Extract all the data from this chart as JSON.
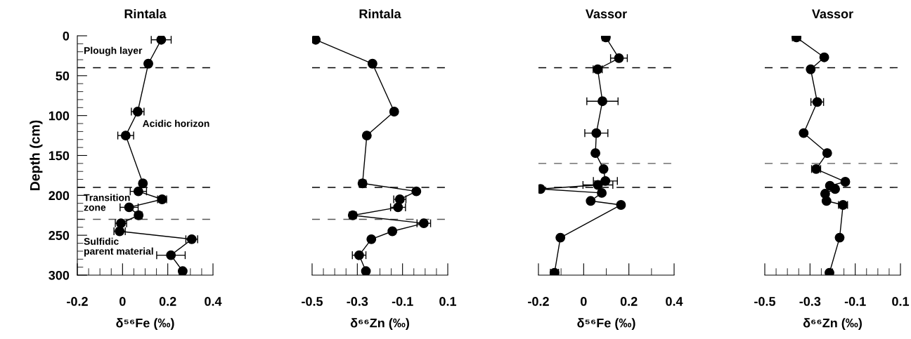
{
  "chart_data": [
    {
      "type": "line",
      "title": "Rintala",
      "xlabel": "δ⁵⁶Fe (‰)",
      "ylabel": "Depth (cm)",
      "marker": "circle",
      "line_style": "solid",
      "grid": false,
      "legend": false,
      "xlim": [
        -0.2,
        0.4
      ],
      "xticks": [
        -0.2,
        {
          "value": -0.15,
          "label": null
        },
        {
          "value": -0.1,
          "label": null
        },
        {
          "value": -0.05,
          "label": null
        },
        0,
        {
          "value": 0.05,
          "label": null
        },
        {
          "value": 0.1,
          "label": null
        },
        {
          "value": 0.15,
          "label": null
        },
        0.2,
        {
          "value": 0.25,
          "label": null
        },
        {
          "value": 0.3,
          "label": null
        },
        {
          "value": 0.35,
          "label": null
        },
        0.4
      ],
      "ylim": [
        300,
        0
      ],
      "yticks": [
        0,
        {
          "value": 10,
          "label": null
        },
        {
          "value": 20,
          "label": null
        },
        {
          "value": 30,
          "label": null
        },
        {
          "value": 40,
          "label": null
        },
        50,
        {
          "value": 60,
          "label": null
        },
        {
          "value": 70,
          "label": null
        },
        {
          "value": 80,
          "label": null
        },
        {
          "value": 90,
          "label": null
        },
        100,
        {
          "value": 110,
          "label": null
        },
        {
          "value": 120,
          "label": null
        },
        {
          "value": 130,
          "label": null
        },
        {
          "value": 140,
          "label": null
        },
        150,
        {
          "value": 160,
          "label": null
        },
        {
          "value": 170,
          "label": null
        },
        {
          "value": 180,
          "label": null
        },
        {
          "value": 190,
          "label": null
        },
        200,
        {
          "value": 210,
          "label": null
        },
        {
          "value": 220,
          "label": null
        },
        {
          "value": 230,
          "label": null
        },
        {
          "value": 240,
          "label": null
        },
        250,
        {
          "value": 260,
          "label": null
        },
        {
          "value": 270,
          "label": null
        },
        {
          "value": 280,
          "label": null
        },
        {
          "value": 290,
          "label": null
        },
        300
      ],
      "series": [
        {
          "color": "#000000",
          "x": [
            0.171,
            0.114,
            0.067,
            0.014,
            0.09,
            0.07,
            0.175,
            0.029,
            0.071,
            -0.007,
            -0.013,
            0.306,
            0.214,
            0.266
          ],
          "values": [
            5,
            35,
            95,
            125,
            185,
            195,
            205,
            215,
            225,
            235,
            245,
            255,
            275,
            295
          ],
          "xerrors": [
            0.044,
            null,
            0.028,
            0.035,
            null,
            0.036,
            0.02,
            0.04,
            0.015,
            0.025,
            0.025,
            0.026,
            0.063,
            null
          ]
        }
      ],
      "ref_lines": [
        {
          "axis": "y",
          "value": 40,
          "line_style": "dashed",
          "color": "#000000"
        },
        {
          "axis": "y",
          "value": 190,
          "line_style": "dashed",
          "color": "#000000"
        },
        {
          "axis": "y",
          "value": 230,
          "line_style": "dashed",
          "color": "#555555"
        }
      ],
      "annotations": [
        "Plough layer",
        "Acidic horizon",
        "Transition\nzone",
        "Sulfidic\nparent material"
      ]
    },
    {
      "type": "line",
      "title": "Rintala",
      "xlabel": "δ⁶⁶Zn (‰)",
      "marker": "circle",
      "line_style": "solid",
      "grid": false,
      "legend": false,
      "tick_labels": "x",
      "xlim": [
        -0.5,
        0.1
      ],
      "xticks": [
        -0.5,
        {
          "value": -0.45,
          "label": null
        },
        {
          "value": -0.4,
          "label": null
        },
        {
          "value": -0.35,
          "label": null
        },
        -0.3,
        {
          "value": -0.25,
          "label": null
        },
        {
          "value": -0.2,
          "label": null
        },
        {
          "value": -0.15,
          "label": null
        },
        -0.1,
        {
          "value": -0.05,
          "label": null
        },
        {
          "value": 0,
          "label": null
        },
        {
          "value": 0.05,
          "label": null
        },
        0.1
      ],
      "ylim": [
        300,
        0
      ],
      "series": [
        {
          "color": "#000000",
          "x": [
            -0.484,
            -0.233,
            -0.137,
            -0.258,
            -0.277,
            -0.039,
            -0.112,
            -0.12,
            -0.32,
            -0.006,
            -0.145,
            -0.238,
            -0.292,
            -0.262
          ],
          "values": [
            5,
            35,
            95,
            125,
            185,
            195,
            205,
            215,
            225,
            235,
            245,
            255,
            275,
            295
          ],
          "xerrors": [
            null,
            0.01,
            null,
            0.01,
            0.015,
            null,
            0.027,
            0.033,
            0.015,
            0.03,
            null,
            null,
            0.03,
            null
          ]
        }
      ],
      "ref_lines": [
        {
          "axis": "y",
          "value": 40,
          "line_style": "dashed",
          "color": "#000000"
        },
        {
          "axis": "y",
          "value": 190,
          "line_style": "dashed",
          "color": "#000000"
        },
        {
          "axis": "y",
          "value": 230,
          "line_style": "dashed",
          "color": "#555555"
        }
      ]
    },
    {
      "type": "line",
      "title": "Vassor",
      "xlabel": "δ⁵⁶Fe (‰)",
      "marker": "circle",
      "line_style": "solid",
      "grid": false,
      "legend": false,
      "tick_labels": "x",
      "xlim": [
        -0.2,
        0.4
      ],
      "xticks": [
        -0.2,
        {
          "value": -0.1,
          "label": null
        },
        0,
        {
          "value": 0.1,
          "label": null
        },
        0.2,
        {
          "value": 0.3,
          "label": null
        },
        0.4
      ],
      "ylim": [
        300,
        0
      ],
      "series": [
        {
          "color": "#000000",
          "x": [
            0.098,
            0.156,
            0.062,
            0.083,
            0.056,
            0.052,
            0.088,
            0.096,
            0.063,
            -0.191,
            0.08,
            0.031,
            0.165,
            -0.103,
            -0.129
          ],
          "values": [
            2,
            28,
            42,
            82,
            122,
            147,
            167,
            182,
            187,
            192,
            197,
            207,
            212,
            253,
            297
          ],
          "xerrors": [
            0.015,
            0.037,
            0.02,
            0.069,
            0.051,
            null,
            null,
            0.053,
            0.066,
            0.01,
            null,
            null,
            null,
            null,
            0.018
          ]
        }
      ],
      "ref_lines": [
        {
          "axis": "y",
          "value": 40,
          "line_style": "dashed",
          "color": "#000000"
        },
        {
          "axis": "y",
          "value": 160,
          "line_style": "dashed",
          "color": "#555555"
        },
        {
          "axis": "y",
          "value": 190,
          "line_style": "dashed",
          "color": "#000000"
        }
      ]
    },
    {
      "type": "line",
      "title": "Vassor",
      "xlabel": "δ⁶⁶Zn (‰)",
      "marker": "circle",
      "line_style": "solid",
      "grid": false,
      "legend": false,
      "tick_labels": "x",
      "xlim": [
        -0.5,
        0.1
      ],
      "xticks": [
        -0.5,
        {
          "value": -0.45,
          "label": null
        },
        {
          "value": -0.4,
          "label": null
        },
        {
          "value": -0.35,
          "label": null
        },
        -0.3,
        {
          "value": -0.25,
          "label": null
        },
        {
          "value": -0.2,
          "label": null
        },
        {
          "value": -0.15,
          "label": null
        },
        -0.1,
        {
          "value": -0.05,
          "label": null
        },
        {
          "value": 0,
          "label": null
        },
        {
          "value": 0.05,
          "label": null
        },
        0.1
      ],
      "ylim": [
        300,
        0
      ],
      "series": [
        {
          "color": "#000000",
          "x": [
            -0.36,
            -0.237,
            -0.297,
            -0.268,
            -0.328,
            -0.224,
            -0.273,
            -0.144,
            -0.212,
            -0.189,
            -0.233,
            -0.227,
            -0.154,
            -0.169,
            -0.214
          ],
          "values": [
            2,
            27,
            42,
            83,
            122,
            147,
            167,
            183,
            188,
            192,
            198,
            207,
            212,
            253,
            297
          ],
          "xerrors": [
            0.018,
            null,
            null,
            0.028,
            null,
            null,
            0.02,
            null,
            null,
            null,
            null,
            null,
            0.02,
            null,
            null
          ]
        }
      ],
      "ref_lines": [
        {
          "axis": "y",
          "value": 40,
          "line_style": "dashed",
          "color": "#000000"
        },
        {
          "axis": "y",
          "value": 160,
          "line_style": "dashed",
          "color": "#555555"
        },
        {
          "axis": "y",
          "value": 190,
          "line_style": "dashed",
          "color": "#000000"
        }
      ]
    }
  ]
}
